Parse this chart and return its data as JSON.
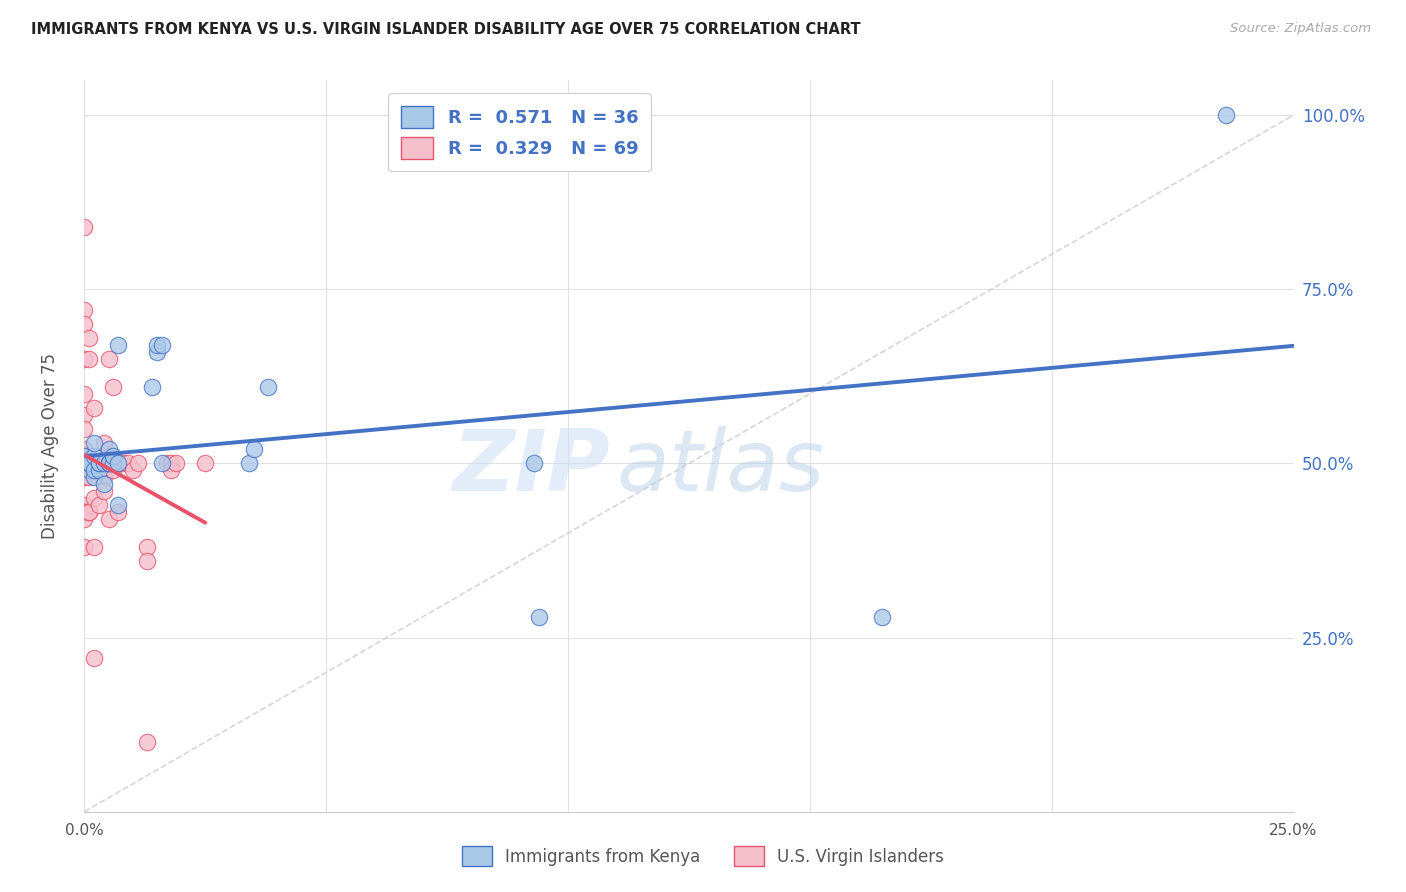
{
  "title": "IMMIGRANTS FROM KENYA VS U.S. VIRGIN ISLANDER DISABILITY AGE OVER 75 CORRELATION CHART",
  "source": "Source: ZipAtlas.com",
  "ylabel": "Disability Age Over 75",
  "watermark_part1": "ZIP",
  "watermark_part2": "atlas",
  "xlim": [
    0.0,
    0.25
  ],
  "ylim": [
    0.0,
    1.05
  ],
  "xticks": [
    0.0,
    0.05,
    0.1,
    0.15,
    0.2,
    0.25
  ],
  "yticks": [
    0.0,
    0.25,
    0.5,
    0.75,
    1.0
  ],
  "xticklabels": [
    "0.0%",
    "",
    "",
    "",
    "",
    "25.0%"
  ],
  "yticklabels_right": [
    "",
    "25.0%",
    "50.0%",
    "75.0%",
    "100.0%"
  ],
  "kenya_R": 0.571,
  "kenya_N": 36,
  "vi_R": 0.329,
  "vi_N": 69,
  "kenya_dot_color": "#aac8e8",
  "vi_dot_color": "#f5bfcc",
  "kenya_edge_color": "#4472C4",
  "vi_edge_color": "#E8536A",
  "kenya_line_color": "#4472C4",
  "vi_line_color": "#E8536A",
  "diagonal_color": "#cccccc",
  "background_color": "#ffffff",
  "grid_color": "#e0e0e0",
  "kenya_x": [
    0.0,
    0.0,
    0.0,
    0.001,
    0.001,
    0.001,
    0.002,
    0.002,
    0.002,
    0.002,
    0.003,
    0.003,
    0.003,
    0.004,
    0.004,
    0.005,
    0.005,
    0.005,
    0.005,
    0.006,
    0.006,
    0.007,
    0.007,
    0.007,
    0.014,
    0.015,
    0.015,
    0.016,
    0.016,
    0.034,
    0.035,
    0.038,
    0.093,
    0.094,
    0.165,
    0.236
  ],
  "kenya_y": [
    0.5,
    0.505,
    0.51,
    0.49,
    0.5,
    0.5,
    0.48,
    0.49,
    0.51,
    0.53,
    0.49,
    0.5,
    0.5,
    0.47,
    0.5,
    0.5,
    0.5,
    0.5,
    0.52,
    0.5,
    0.51,
    0.44,
    0.5,
    0.67,
    0.61,
    0.66,
    0.67,
    0.5,
    0.67,
    0.5,
    0.52,
    0.61,
    0.5,
    0.28,
    0.28,
    1.0
  ],
  "vi_x": [
    0.0,
    0.0,
    0.0,
    0.0,
    0.0,
    0.0,
    0.0,
    0.0,
    0.0,
    0.0,
    0.0,
    0.0,
    0.0,
    0.0,
    0.0,
    0.0,
    0.0,
    0.0,
    0.0,
    0.0,
    0.0,
    0.0,
    0.0,
    0.001,
    0.001,
    0.001,
    0.001,
    0.001,
    0.001,
    0.001,
    0.001,
    0.002,
    0.002,
    0.002,
    0.002,
    0.002,
    0.002,
    0.002,
    0.003,
    0.003,
    0.003,
    0.003,
    0.003,
    0.004,
    0.004,
    0.004,
    0.004,
    0.005,
    0.005,
    0.005,
    0.005,
    0.005,
    0.006,
    0.006,
    0.006,
    0.007,
    0.007,
    0.008,
    0.009,
    0.01,
    0.011,
    0.013,
    0.013,
    0.013,
    0.017,
    0.018,
    0.018,
    0.019,
    0.025
  ],
  "vi_y": [
    0.84,
    0.72,
    0.7,
    0.65,
    0.6,
    0.57,
    0.55,
    0.52,
    0.51,
    0.5,
    0.5,
    0.5,
    0.49,
    0.49,
    0.49,
    0.48,
    0.48,
    0.44,
    0.43,
    0.43,
    0.43,
    0.42,
    0.38,
    0.68,
    0.65,
    0.5,
    0.5,
    0.49,
    0.48,
    0.43,
    0.43,
    0.58,
    0.5,
    0.5,
    0.5,
    0.45,
    0.38,
    0.22,
    0.5,
    0.5,
    0.49,
    0.49,
    0.44,
    0.53,
    0.5,
    0.48,
    0.46,
    0.65,
    0.51,
    0.5,
    0.5,
    0.42,
    0.61,
    0.5,
    0.49,
    0.5,
    0.43,
    0.5,
    0.5,
    0.49,
    0.5,
    0.38,
    0.36,
    0.1,
    0.5,
    0.5,
    0.49,
    0.5,
    0.5
  ]
}
